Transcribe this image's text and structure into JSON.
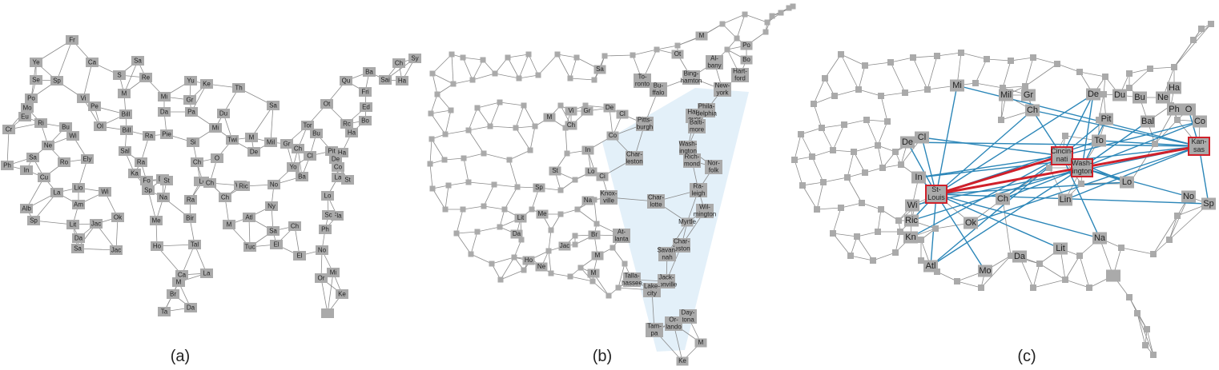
{
  "captions": {
    "a": "(a)",
    "b": "(b)",
    "c": "(c)"
  },
  "colors": {
    "node_fill": "#aaaaaa",
    "edge_gray": "#8a8a8a",
    "edge_blue": "#2b86b8",
    "edge_red": "#d0202a",
    "node_red_stroke": "#d0202a",
    "focus_region": "#e3f0f9"
  },
  "panel_a": {
    "labels": [
      "Fr",
      "Ye",
      "Ca",
      "Sa",
      "Se",
      "Sp",
      "S",
      "Re",
      "Yu",
      "Ke",
      "Th",
      "Ch",
      "Sai",
      "Ha",
      "Sy",
      "Po",
      "Vi",
      "M",
      "Mi",
      "Gr",
      "Qu",
      "Ba",
      "Fri",
      "Ed",
      "Pe",
      "Bill",
      "Da",
      "Pa",
      "Du",
      "Sa",
      "Ot",
      "Mo",
      "Bo",
      "Cr",
      "Eu",
      "Ri",
      "Bu",
      "OI",
      "Bill",
      "Ra",
      "Pie",
      "Si",
      "Mi",
      "Tor",
      "Bu",
      "Rc",
      "Ha",
      "Ne",
      "Wi",
      "Twi",
      "M",
      "Mil",
      "Gr",
      "De",
      "Ch",
      "Cl",
      "Pit",
      "Ha",
      "Ph",
      "Sa",
      "Ro",
      "Ely",
      "Sal",
      "Ra",
      "Ch",
      "O",
      "De",
      "Fo",
      "Co",
      "Bal",
      "Wa",
      "Yo",
      "De",
      "Co",
      "In",
      "Ka",
      "St",
      "Lo",
      "Ch",
      "Ric",
      "No",
      "Ba",
      "La",
      "St",
      "Cu",
      "La",
      "Lio",
      "Wi",
      "Sp",
      "Na",
      "Ra",
      "Ch",
      "Ny",
      "Lo",
      "Fla",
      "Alb",
      "Am",
      "Ok",
      "Me",
      "Bir",
      "Atl",
      "Sa",
      "Ch",
      "Sc",
      "Ph",
      "Sp",
      "Lit",
      "Jac",
      "M",
      "Tuc",
      "El",
      "Da",
      "Jac",
      "Tal",
      "No",
      "El",
      "Sa",
      "Ho",
      "Ca",
      "La",
      "M",
      "Br",
      "Ta",
      "Da",
      "Or",
      "Mi",
      "Ke"
    ]
  },
  "panel_b": {
    "labels": [
      "M",
      "Po",
      "Bo",
      "Hart-ford",
      "Ot",
      "Al-bany",
      "Sa",
      "Bing-hamton",
      "To-ronto",
      "Bu-ffalo",
      "New-york",
      "M",
      "Vi",
      "Gr",
      "De",
      "Cl",
      "Pitts-burgh",
      "Han-over",
      "Phila-delphia",
      "Balti-more",
      "Ch",
      "Co",
      "Wash-ington",
      "In",
      "Ci",
      "Lo",
      "Char-leston",
      "Rich-mond",
      "Nor-folk",
      "Sp",
      "St",
      "Na",
      "Knox-ville",
      "Char-lotte",
      "Ra-leigh",
      "Wil-mington",
      "Lit",
      "Me",
      "Myrtle",
      "Da",
      "Br",
      "At-lanta",
      "Char-leston",
      "Jac",
      "Ho",
      "M",
      "Savan-nah",
      "Ne",
      "M",
      "Talla-hassee",
      "Jack-sonville",
      "Lake-city",
      "Day-tona",
      "Or-lando",
      "Tam-pa",
      "M",
      "Ke"
    ]
  },
  "panel_c": {
    "labels": [
      "Mi",
      "Mil",
      "Gr",
      "Ch",
      "De",
      "Du",
      "Bu",
      "Ne",
      "Ha",
      "Ph",
      "O",
      "De",
      "Cl",
      "Pit",
      "Bal",
      "Co",
      "To",
      "In",
      "Cincin-nati",
      "Wash-ington",
      "Kan-sas",
      "St-Louis",
      "Ch",
      "Lo",
      "Lin",
      "Wi",
      "Ric",
      "No",
      "Sp",
      "Ok",
      "Kn",
      "Na",
      "Lit",
      "Mo",
      "Da",
      "Atl"
    ]
  }
}
